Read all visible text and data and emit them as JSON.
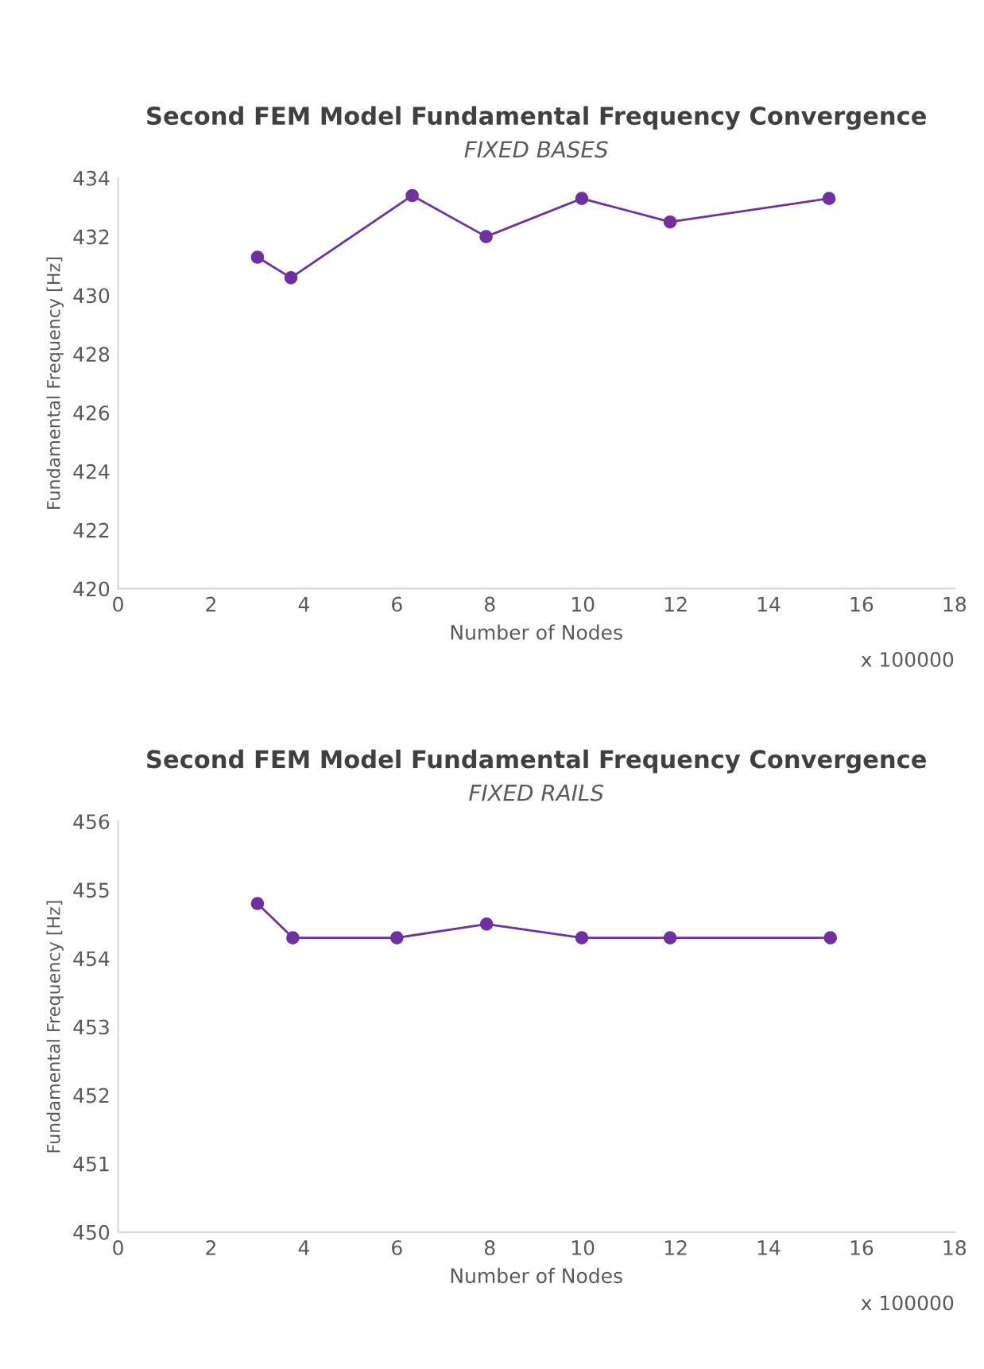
{
  "chart_data": [
    {
      "type": "line",
      "title": "Second FEM Model Fundamental Frequency Convergence",
      "subtitle": "FIXED BASES",
      "xlabel": "Number of Nodes",
      "ylabel": "Fundamental Frequency [Hz]",
      "annotations": [
        "x 100000"
      ],
      "x": [
        3.0,
        3.72,
        6.33,
        7.92,
        9.98,
        11.88,
        15.3
      ],
      "series": [
        {
          "color": "#7030a0",
          "values": [
            431.3,
            430.6,
            433.4,
            432.0,
            433.3,
            432.5,
            433.3
          ]
        }
      ],
      "xlim": [
        0,
        18
      ],
      "xticks": [
        0,
        2,
        4,
        6,
        8,
        10,
        12,
        14,
        16,
        18
      ],
      "ylim": [
        420,
        434
      ],
      "yticks": [
        420,
        422,
        424,
        426,
        428,
        430,
        432,
        434
      ],
      "grid": false,
      "marker": "circle",
      "line_style": "solid"
    },
    {
      "type": "line",
      "title": "Second FEM Model Fundamental Frequency Convergence",
      "subtitle": "FIXED RAILS",
      "xlabel": "Number of Nodes",
      "ylabel": "Fundamental Frequency [Hz]",
      "annotations": [
        "x 100000"
      ],
      "x": [
        3.0,
        3.76,
        6.0,
        7.93,
        9.98,
        11.88,
        15.33
      ],
      "series": [
        {
          "color": "#7030a0",
          "values": [
            454.8,
            454.3,
            454.3,
            454.5,
            454.3,
            454.3,
            454.3
          ]
        }
      ],
      "xlim": [
        0,
        18
      ],
      "xticks": [
        0,
        2,
        4,
        6,
        8,
        10,
        12,
        14,
        16,
        18
      ],
      "ylim": [
        450,
        456
      ],
      "yticks": [
        450,
        451,
        452,
        453,
        454,
        455,
        456
      ],
      "grid": false,
      "marker": "circle",
      "line_style": "solid"
    }
  ]
}
